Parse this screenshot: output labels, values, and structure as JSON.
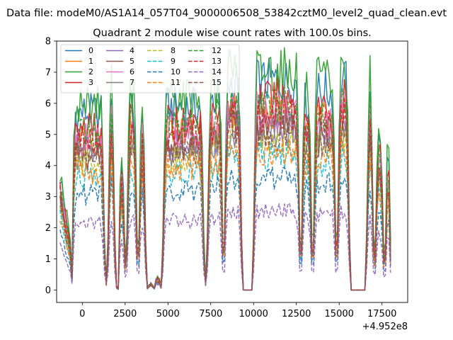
{
  "suptitle": "Data file: modeM0/AS1A14_057T04_9000006508_53842cztM0_level2_quad_clean.evt",
  "chart_data": {
    "type": "line",
    "title": "Quadrant 2 module wise count rates with 100.0s bins.",
    "xlabel": "",
    "ylabel": "",
    "offset_text": "+4.952e8",
    "xlim": [
      -1500,
      19000
    ],
    "ylim": [
      -0.4,
      8.0
    ],
    "xticks": [
      0,
      2500,
      5000,
      7500,
      10000,
      12500,
      15000,
      17500
    ],
    "yticks": [
      0,
      1,
      2,
      3,
      4,
      5,
      6,
      7,
      8
    ],
    "grid": false,
    "legend": {
      "placement": "top-left",
      "ncol": 4
    },
    "x_range": [
      -1300,
      18000
    ],
    "x_step": 100,
    "dropouts": [
      [
        9400,
        9900
      ],
      [
        15700,
        16500
      ]
    ],
    "segments": [
      {
        "start": -1300,
        "end": -800,
        "level": 0.55,
        "shape": "ramp"
      },
      {
        "start": -800,
        "end": -600,
        "level": 0.3
      },
      {
        "start": -600,
        "end": 1300,
        "level": 0.85
      },
      {
        "start": 1500,
        "end": 1900,
        "level": 0.95
      },
      {
        "start": 1900,
        "end": 2100,
        "level": 0.02
      },
      {
        "start": 2100,
        "end": 2500,
        "level": 0.6
      },
      {
        "start": 2600,
        "end": 3200,
        "level": 0.9
      },
      {
        "start": 3300,
        "end": 3700,
        "level": 0.85
      },
      {
        "start": 3800,
        "end": 4200,
        "level": 0.03
      },
      {
        "start": 4200,
        "end": 4600,
        "level": 0.06
      },
      {
        "start": 4700,
        "end": 7100,
        "level": 0.88
      },
      {
        "start": 7300,
        "end": 8200,
        "level": 0.92
      },
      {
        "start": 8300,
        "end": 9300,
        "level": 1.0
      },
      {
        "start": 10000,
        "end": 12700,
        "level": 1.0
      },
      {
        "start": 12800,
        "end": 13400,
        "level": 0.9
      },
      {
        "start": 13500,
        "end": 14800,
        "level": 0.95
      },
      {
        "start": 14900,
        "end": 15600,
        "level": 1.0
      },
      {
        "start": 16600,
        "end": 17000,
        "level": 1.0
      },
      {
        "start": 17100,
        "end": 17600,
        "level": 0.7
      },
      {
        "start": 17700,
        "end": 18000,
        "level": 0.8
      }
    ],
    "series": [
      {
        "name": "0",
        "color": "#1f77b4",
        "dash": "solid",
        "peak": 6.9
      },
      {
        "name": "1",
        "color": "#ff7f0e",
        "dash": "solid",
        "peak": 5.9
      },
      {
        "name": "2",
        "color": "#2ca02c",
        "dash": "solid",
        "peak": 7.3
      },
      {
        "name": "3",
        "color": "#d62728",
        "dash": "solid",
        "peak": 6.3
      },
      {
        "name": "4",
        "color": "#9467bd",
        "dash": "solid",
        "peak": 5.5
      },
      {
        "name": "5",
        "color": "#8c564b",
        "dash": "solid",
        "peak": 5.4
      },
      {
        "name": "6",
        "color": "#e377c2",
        "dash": "solid",
        "peak": 5.9
      },
      {
        "name": "7",
        "color": "#7f7f7f",
        "dash": "solid",
        "peak": 5.2
      },
      {
        "name": "8",
        "color": "#bcbd22",
        "dash": "dashed",
        "peak": 5.0
      },
      {
        "name": "9",
        "color": "#17becf",
        "dash": "dashed",
        "peak": 4.4
      },
      {
        "name": "10",
        "color": "#1f77b4",
        "dash": "dashed",
        "peak": 3.7
      },
      {
        "name": "11",
        "color": "#ff7f0e",
        "dash": "dashed",
        "peak": 4.6
      },
      {
        "name": "12",
        "color": "#2ca02c",
        "dash": "dashed",
        "peak": 6.2
      },
      {
        "name": "13",
        "color": "#d62728",
        "dash": "dashed",
        "peak": 5.8
      },
      {
        "name": "14",
        "color": "#9467bd",
        "dash": "dashed",
        "peak": 2.6
      },
      {
        "name": "15",
        "color": "#8c564b",
        "dash": "dashed",
        "peak": 5.2
      }
    ]
  }
}
